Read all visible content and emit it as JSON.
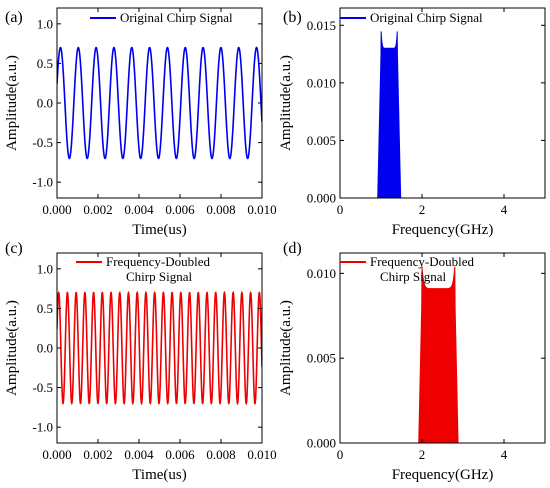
{
  "colors": {
    "blue": "#0000ee",
    "red": "#ee0000"
  },
  "chart_data": [
    {
      "panel_label": "(a)",
      "type": "line",
      "xlabel": "Time(us)",
      "ylabel": "Amplitude(a.u.)",
      "xlim": [
        0.0,
        0.01
      ],
      "ylim": [
        -1.2,
        1.2
      ],
      "xticks": [
        "0.000",
        "0.002",
        "0.004",
        "0.006",
        "0.008",
        "0.010"
      ],
      "yticks": [
        "-1.0",
        "-0.5",
        "0.0",
        "0.5",
        "1.0"
      ],
      "legend": "top-right",
      "series": [
        {
          "name": "Original Chirp Signal",
          "color": "blue",
          "amplitude": 0.7,
          "cycles": 11.5
        }
      ]
    },
    {
      "panel_label": "(b)",
      "type": "area",
      "xlabel": "Frequency(GHz)",
      "ylabel": "Amplitude(a.u.)",
      "xlim": [
        0,
        5
      ],
      "ylim": [
        0,
        0.0165
      ],
      "xticks": [
        "0",
        "2",
        "4"
      ],
      "yticks": [
        "0.000",
        "0.005",
        "0.010",
        "0.015"
      ],
      "legend": "top-right",
      "series": [
        {
          "name": "Original Chirp Signal",
          "color": "blue",
          "band_ghz": [
            1.0,
            1.4
          ],
          "plateau": 0.013,
          "peak": 0.0148
        }
      ]
    },
    {
      "panel_label": "(c)",
      "type": "line",
      "xlabel": "Time(us)",
      "ylabel": "Amplitude(a.u.)",
      "xlim": [
        0.0,
        0.01
      ],
      "ylim": [
        -1.2,
        1.2
      ],
      "xticks": [
        "0.000",
        "0.002",
        "0.004",
        "0.006",
        "0.008",
        "0.010"
      ],
      "yticks": [
        "-1.0",
        "-0.5",
        "0.0",
        "0.5",
        "1.0"
      ],
      "legend": "top-right",
      "series": [
        {
          "name": "Frequency-Doubled Chirp Signal",
          "name_lines": [
            "Frequency-Doubled",
            "Chirp Signal"
          ],
          "color": "red",
          "amplitude": 0.7,
          "cycles": 23.5
        }
      ]
    },
    {
      "panel_label": "(d)",
      "type": "area",
      "xlabel": "Frequency(GHz)",
      "ylabel": "Amplitude(a.u.)",
      "xlim": [
        0,
        5
      ],
      "ylim": [
        0,
        0.0112
      ],
      "xticks": [
        "0",
        "2",
        "4"
      ],
      "yticks": [
        "0.000",
        "0.005",
        "0.010"
      ],
      "legend": "top-right",
      "series": [
        {
          "name": "Frequency-Doubled Chirp Signal",
          "name_lines": [
            "Frequency-Doubled",
            "Chirp Signal"
          ],
          "color": "red",
          "band_ghz": [
            2.0,
            2.8
          ],
          "plateau": 0.0091,
          "peak": 0.0104
        }
      ]
    }
  ]
}
